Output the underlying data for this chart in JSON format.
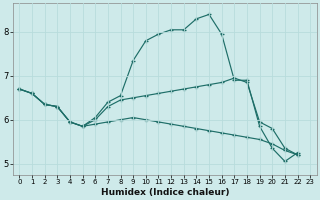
{
  "xlabel": "Humidex (Indice chaleur)",
  "bg_color": "#ceeaea",
  "line_color": "#1e6e68",
  "grid_color": "#b8dcdc",
  "xlim": [
    -0.5,
    23.5
  ],
  "ylim": [
    4.75,
    8.65
  ],
  "xticks": [
    0,
    1,
    2,
    3,
    4,
    5,
    6,
    7,
    8,
    9,
    10,
    11,
    12,
    13,
    14,
    15,
    16,
    17,
    18,
    19,
    20,
    21,
    22,
    23
  ],
  "yticks": [
    5,
    6,
    7,
    8
  ],
  "line1_x": [
    0,
    1,
    2,
    3,
    4,
    5,
    6,
    7,
    8,
    9,
    10,
    11,
    12,
    13,
    14,
    15,
    16,
    17,
    18,
    19,
    20,
    21,
    22
  ],
  "line1_y": [
    6.7,
    6.6,
    6.35,
    6.3,
    5.95,
    5.85,
    6.05,
    6.4,
    6.55,
    7.35,
    7.8,
    7.95,
    8.05,
    8.05,
    8.3,
    8.4,
    7.95,
    6.9,
    6.9,
    5.85,
    5.35,
    5.05,
    5.25
  ],
  "line2_x": [
    0,
    1,
    2,
    3,
    4,
    5,
    6,
    7,
    8,
    9,
    10,
    11,
    12,
    13,
    14,
    15,
    16,
    17,
    18,
    19,
    20,
    21,
    22
  ],
  "line2_y": [
    6.7,
    6.6,
    6.35,
    6.3,
    5.95,
    5.85,
    6.0,
    6.3,
    6.45,
    6.5,
    6.55,
    6.6,
    6.65,
    6.7,
    6.75,
    6.8,
    6.85,
    6.95,
    6.85,
    5.95,
    5.8,
    5.35,
    5.2
  ],
  "line3_x": [
    0,
    1,
    2,
    3,
    4,
    5,
    6,
    7,
    8,
    9,
    10,
    11,
    12,
    13,
    14,
    15,
    16,
    17,
    18,
    19,
    20,
    21,
    22
  ],
  "line3_y": [
    6.7,
    6.6,
    6.35,
    6.3,
    5.95,
    5.85,
    5.9,
    5.95,
    6.0,
    6.05,
    6.0,
    5.95,
    5.9,
    5.85,
    5.8,
    5.75,
    5.7,
    5.65,
    5.6,
    5.55,
    5.45,
    5.3,
    5.2
  ],
  "line1_markers": [
    0,
    1,
    2,
    3,
    4,
    5,
    7,
    8,
    9,
    10,
    11,
    13,
    14,
    15,
    16,
    17,
    18,
    19,
    20,
    21,
    22
  ],
  "line2_markers": [
    0,
    1,
    2,
    7,
    8,
    9,
    17,
    19,
    20,
    21,
    22
  ],
  "line3_markers": [
    0,
    1,
    2,
    7,
    8,
    9,
    17,
    19,
    20,
    21,
    22
  ]
}
